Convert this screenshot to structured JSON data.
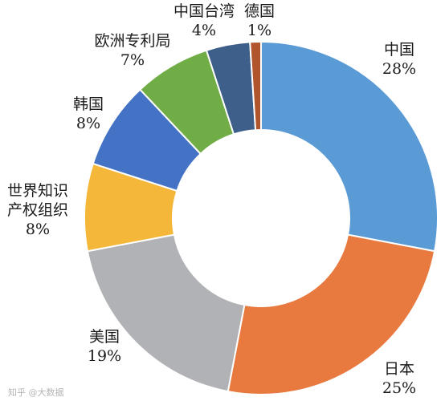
{
  "chart_data": {
    "type": "pie",
    "donut": true,
    "categories": [
      "中国",
      "日本",
      "美国",
      "世界知识产权组织",
      "韩国",
      "欧洲专利局",
      "中国台湾",
      "德国"
    ],
    "label_lines": [
      [
        "中国"
      ],
      [
        "日本"
      ],
      [
        "美国"
      ],
      [
        "世界知识",
        "产权组织"
      ],
      [
        "韩国"
      ],
      [
        "欧洲专利局"
      ],
      [
        "中国台湾"
      ],
      [
        "德国"
      ]
    ],
    "values": [
      28,
      25,
      19,
      8,
      8,
      7,
      4,
      1
    ],
    "value_labels": [
      "28%",
      "25%",
      "19%",
      "8%",
      "8%",
      "7%",
      "4%",
      "1%"
    ],
    "colors": [
      "#5B9BD5",
      "#E8793F",
      "#B1B2B5",
      "#F5B73A",
      "#4472C4",
      "#70AD47",
      "#3E5F8A",
      "#B1552C"
    ],
    "legend": "none"
  },
  "watermark": "知乎 @大数据"
}
